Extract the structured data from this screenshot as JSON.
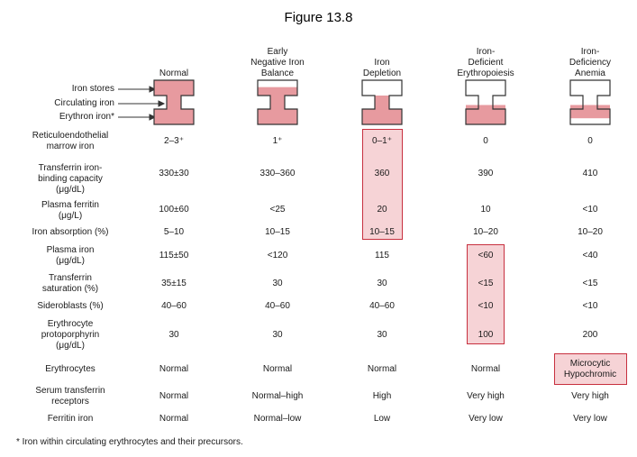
{
  "figure_title": "Figure 13.8",
  "colors": {
    "iron_fill": "#e79a9f",
    "highlight_fill": "#f6d3d6",
    "highlight_border": "#c7303f",
    "outline": "#333333"
  },
  "columns": [
    {
      "label": "Normal",
      "stores_fill": 1.0,
      "circ_fill": 1.0,
      "erythron_fill": 1.0
    },
    {
      "label": "Early\nNegative Iron\nBalance",
      "stores_fill": 0.55,
      "circ_fill": 1.0,
      "erythron_fill": 1.0
    },
    {
      "label": "Iron\nDepletion",
      "stores_fill": 0.0,
      "circ_fill": 1.0,
      "erythron_fill": 1.0
    },
    {
      "label": "Iron-\nDeficient\nErythropoiesis",
      "stores_fill": 0.0,
      "circ_fill": 0.3,
      "erythron_fill": 1.0
    },
    {
      "label": "Iron-\nDeficiency\nAnemia",
      "stores_fill": 0.0,
      "circ_fill": 0.3,
      "erythron_fill": 0.6
    }
  ],
  "legend": {
    "stores": "Iron stores",
    "circulating": "Circulating iron",
    "erythron": "Erythron iron*"
  },
  "rows": [
    {
      "label": "Reticuloendothelial\nmarrow iron",
      "values": [
        "2–3⁺",
        "1⁺",
        "0–1⁺",
        "0",
        "0"
      ]
    },
    {
      "label": "Transferrin iron-\nbinding capacity\n(μg/dL)",
      "values": [
        "330±30",
        "330–360",
        "360",
        "390",
        "410"
      ]
    },
    {
      "label": "Plasma ferritin\n(μg/L)",
      "values": [
        "100±60",
        "<25",
        "20",
        "10",
        "<10"
      ]
    },
    {
      "label": "Iron absorption (%)",
      "values": [
        "5–10",
        "10–15",
        "10–15",
        "10–20",
        "10–20"
      ]
    },
    {
      "label": "Plasma iron\n(μg/dL)",
      "values": [
        "115±50",
        "<120",
        "115",
        "<60",
        "<40"
      ]
    },
    {
      "label": "Transferrin\nsaturation (%)",
      "values": [
        "35±15",
        "30",
        "30",
        "<15",
        "<15"
      ]
    },
    {
      "label": "Sideroblasts (%)",
      "values": [
        "40–60",
        "40–60",
        "40–60",
        "<10",
        "<10"
      ]
    },
    {
      "label": "Erythrocyte\nprotoporphyrin\n(μg/dL)",
      "values": [
        "30",
        "30",
        "30",
        "100",
        "200"
      ]
    },
    {
      "label": "Erythrocytes",
      "values": [
        "Normal",
        "Normal",
        "Normal",
        "Normal",
        "Microcytic\nHypochromic"
      ]
    },
    {
      "label": "Serum transferrin\nreceptors",
      "values": [
        "Normal",
        "Normal–high",
        "High",
        "Very high",
        "Very high"
      ]
    },
    {
      "label": "Ferritin iron",
      "values": [
        "Normal",
        "Normal–low",
        "Low",
        "Very low",
        "Very low"
      ]
    }
  ],
  "footnote": "* Iron within circulating erythrocytes and their precursors."
}
